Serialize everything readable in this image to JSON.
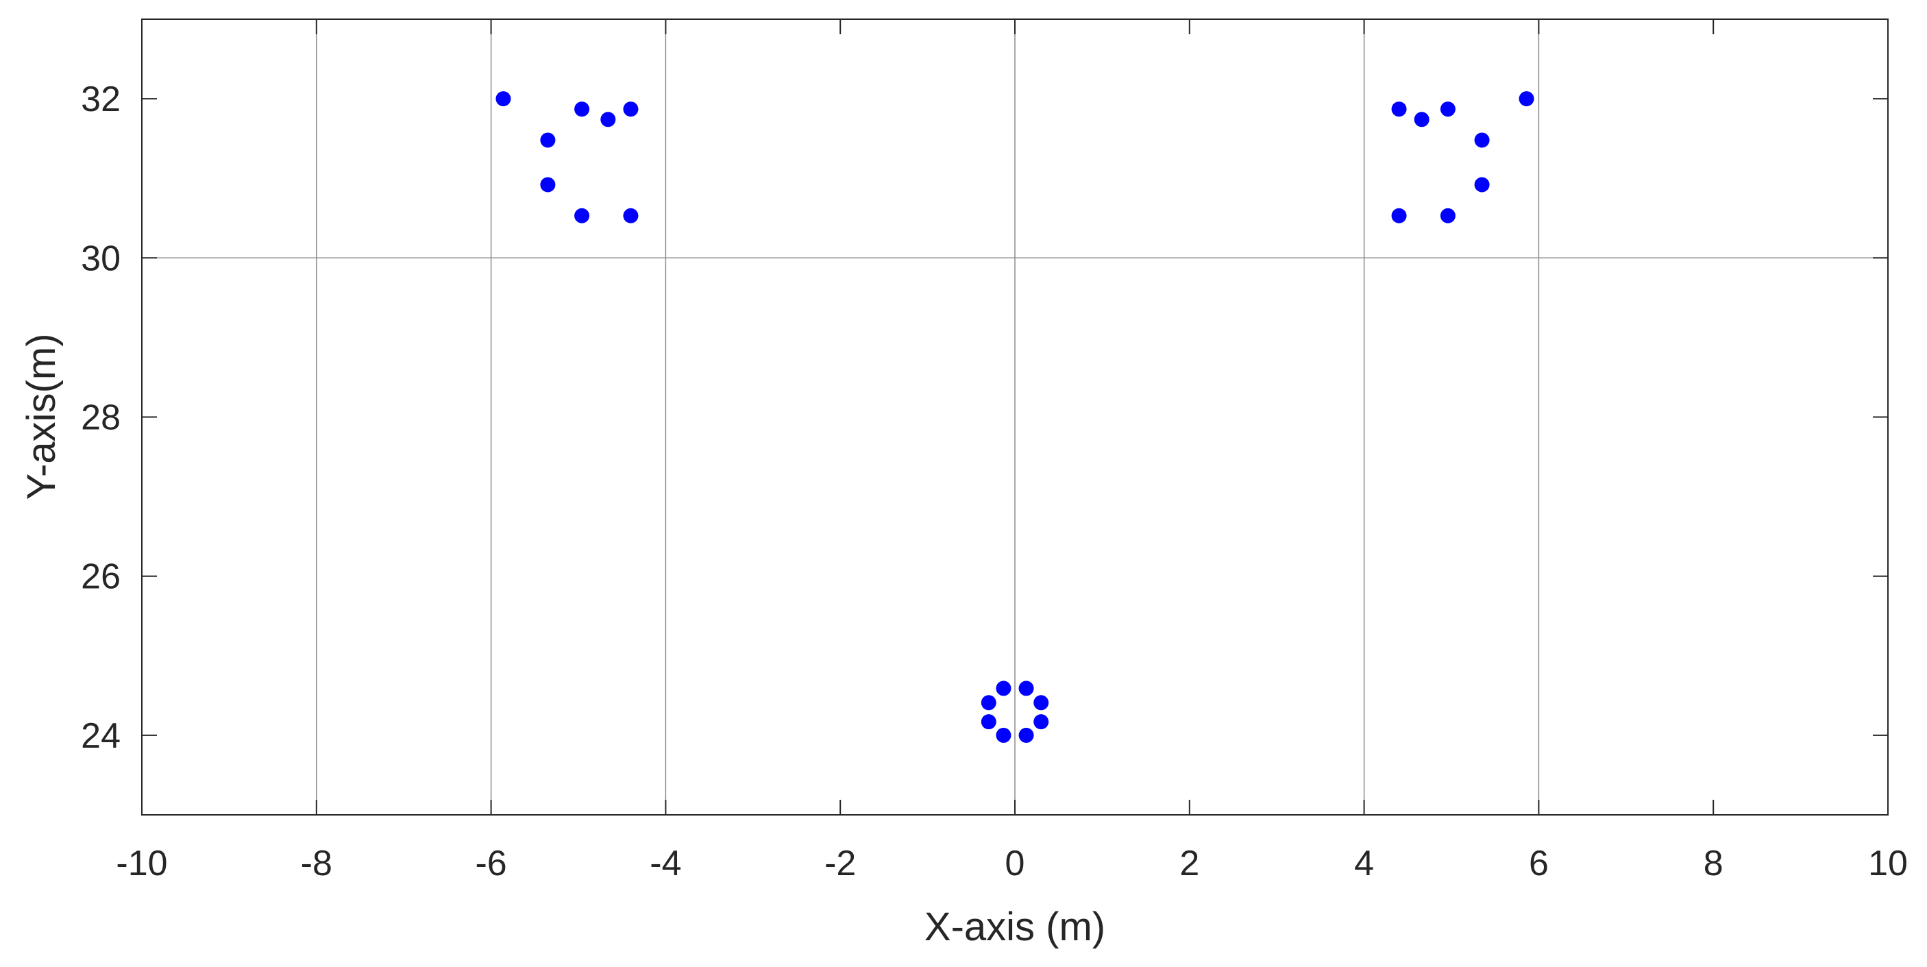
{
  "chart_data": {
    "type": "scatter",
    "title": "",
    "xlabel": "X-axis (m)",
    "ylabel": "Y-axis(m)",
    "xlim": [
      -10,
      10
    ],
    "ylim": [
      23,
      33
    ],
    "xticks": [
      -10,
      -8,
      -6,
      -4,
      -2,
      0,
      2,
      4,
      6,
      8,
      10
    ],
    "yticks": [
      24,
      26,
      28,
      30,
      32
    ],
    "xtick_labels": [
      "-10",
      "-8",
      "-6",
      "-4",
      "-2",
      "0",
      "2",
      "4",
      "6",
      "8",
      "10"
    ],
    "ytick_labels": [
      "24",
      "26",
      "28",
      "30",
      "32"
    ],
    "grid_x": [
      -8,
      -6,
      -4,
      0,
      4,
      6
    ],
    "grid_y": [
      30
    ],
    "marker_color": "#0000ff",
    "series": [
      {
        "points": [
          {
            "x": -5.86,
            "y": 32.0
          },
          {
            "x": -5.35,
            "y": 31.48
          },
          {
            "x": -4.96,
            "y": 31.87
          },
          {
            "x": -4.66,
            "y": 31.74
          },
          {
            "x": -4.4,
            "y": 31.87
          },
          {
            "x": -5.35,
            "y": 30.92
          },
          {
            "x": -4.96,
            "y": 30.53
          },
          {
            "x": -4.4,
            "y": 30.53
          },
          {
            "x": 4.4,
            "y": 31.87
          },
          {
            "x": 4.66,
            "y": 31.74
          },
          {
            "x": 4.96,
            "y": 31.87
          },
          {
            "x": 5.86,
            "y": 32.0
          },
          {
            "x": 5.35,
            "y": 31.48
          },
          {
            "x": 5.35,
            "y": 30.92
          },
          {
            "x": 4.4,
            "y": 30.53
          },
          {
            "x": 4.96,
            "y": 30.53
          },
          {
            "x": -0.13,
            "y": 24.59
          },
          {
            "x": 0.13,
            "y": 24.59
          },
          {
            "x": -0.3,
            "y": 24.41
          },
          {
            "x": 0.3,
            "y": 24.41
          },
          {
            "x": -0.3,
            "y": 24.17
          },
          {
            "x": 0.3,
            "y": 24.17
          },
          {
            "x": -0.13,
            "y": 24.0
          },
          {
            "x": 0.13,
            "y": 24.0
          }
        ]
      }
    ]
  }
}
